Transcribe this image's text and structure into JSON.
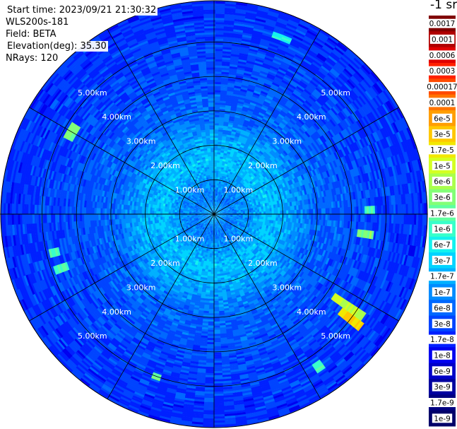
{
  "header": {
    "start_time": "Start time: 2023/09/21 21:30:32",
    "device": "WLS200s-181",
    "field": "Field: BETA",
    "elevation": "Elevation(deg): 35.30",
    "nrays": "NRays: 120"
  },
  "colorbar": {
    "unit_label": "-1 sr",
    "tick_labels": [
      "0.0017",
      "0.001",
      "0.0006",
      "0.0003",
      "0.00017",
      "0.0001",
      "6e-5",
      "3e-5",
      "1.7e-5",
      "1e-5",
      "6e-6",
      "3e-6",
      "1.7e-6",
      "1e-6",
      "6e-7",
      "3e-7",
      "1.7e-7",
      "1e-7",
      "6e-8",
      "3e-8",
      "1.7e-8",
      "1e-8",
      "6e-9",
      "3e-9",
      "1.7e-9",
      "1e-9"
    ],
    "colors": [
      "#800000",
      "#b00000",
      "#e00000",
      "#ff2000",
      "#ff4a00",
      "#ff7400",
      "#ff9e00",
      "#ffc800",
      "#f2e800",
      "#d4ff22",
      "#aaff4c",
      "#82ff76",
      "#60ffa0",
      "#38ffca",
      "#14f2ee",
      "#00d4ff",
      "#00b0ff",
      "#008cff",
      "#0068ff",
      "#0044ff",
      "#0020ff",
      "#0000f0",
      "#0000c8",
      "#0000a0",
      "#000080",
      "#00006a"
    ]
  },
  "chart_data": {
    "type": "heatmap",
    "projection": "polar (PPI scan)",
    "field": "BETA",
    "elevation_deg": 35.3,
    "n_rays": 120,
    "range_rings_km": [
      1.0,
      2.0,
      3.0,
      4.0,
      5.0
    ],
    "ring_labels": [
      "1.00km",
      "2.00km",
      "3.00km",
      "4.00km",
      "5.00km"
    ],
    "max_range_km": 6.2,
    "spoke_azimuths_deg": [
      0,
      30,
      60,
      90,
      120,
      150,
      180,
      210,
      240,
      270,
      300,
      330
    ],
    "value_scale": "log",
    "value_range": [
      1e-09,
      0.0017
    ],
    "radial_profile": [
      {
        "range_km": 0.0,
        "log_beta": -6.7
      },
      {
        "range_km": 0.5,
        "log_beta": -7.1
      },
      {
        "range_km": 1.0,
        "log_beta": -6.9
      },
      {
        "range_km": 1.5,
        "log_beta": -6.6
      },
      {
        "range_km": 2.2,
        "log_beta": -6.8
      },
      {
        "range_km": 2.8,
        "log_beta": -7.15
      },
      {
        "range_km": 3.5,
        "log_beta": -7.3
      },
      {
        "range_km": 4.5,
        "log_beta": -7.45
      },
      {
        "range_km": 5.5,
        "log_beta": -7.55
      },
      {
        "range_km": 6.2,
        "log_beta": -7.6
      }
    ],
    "hotspots": [
      {
        "azimuth_deg": 124,
        "range_start_km": 4.2,
        "range_end_km": 5.3,
        "log_beta": -5.2
      },
      {
        "azimuth_deg": 127,
        "range_start_km": 4.6,
        "range_end_km": 5.4,
        "log_beta": -4.7
      },
      {
        "azimuth_deg": 97,
        "range_start_km": 4.2,
        "range_end_km": 4.7,
        "log_beta": -5.6
      },
      {
        "azimuth_deg": 88,
        "range_start_km": 4.4,
        "range_end_km": 4.7,
        "log_beta": -5.9
      },
      {
        "azimuth_deg": 300,
        "range_start_km": 4.6,
        "range_end_km": 4.9,
        "log_beta": -5.6
      },
      {
        "azimuth_deg": 251,
        "range_start_km": 4.5,
        "range_end_km": 4.9,
        "log_beta": -5.9
      },
      {
        "azimuth_deg": 257,
        "range_start_km": 4.6,
        "range_end_km": 4.9,
        "log_beta": -5.9
      },
      {
        "azimuth_deg": 200,
        "range_start_km": 4.9,
        "range_end_km": 5.1,
        "log_beta": -5.6
      },
      {
        "azimuth_deg": 146,
        "range_start_km": 5.2,
        "range_end_km": 5.5,
        "log_beta": -5.9
      },
      {
        "azimuth_deg": 21,
        "range_start_km": 5.4,
        "range_end_km": 5.6,
        "log_beta": -6.1
      }
    ]
  }
}
